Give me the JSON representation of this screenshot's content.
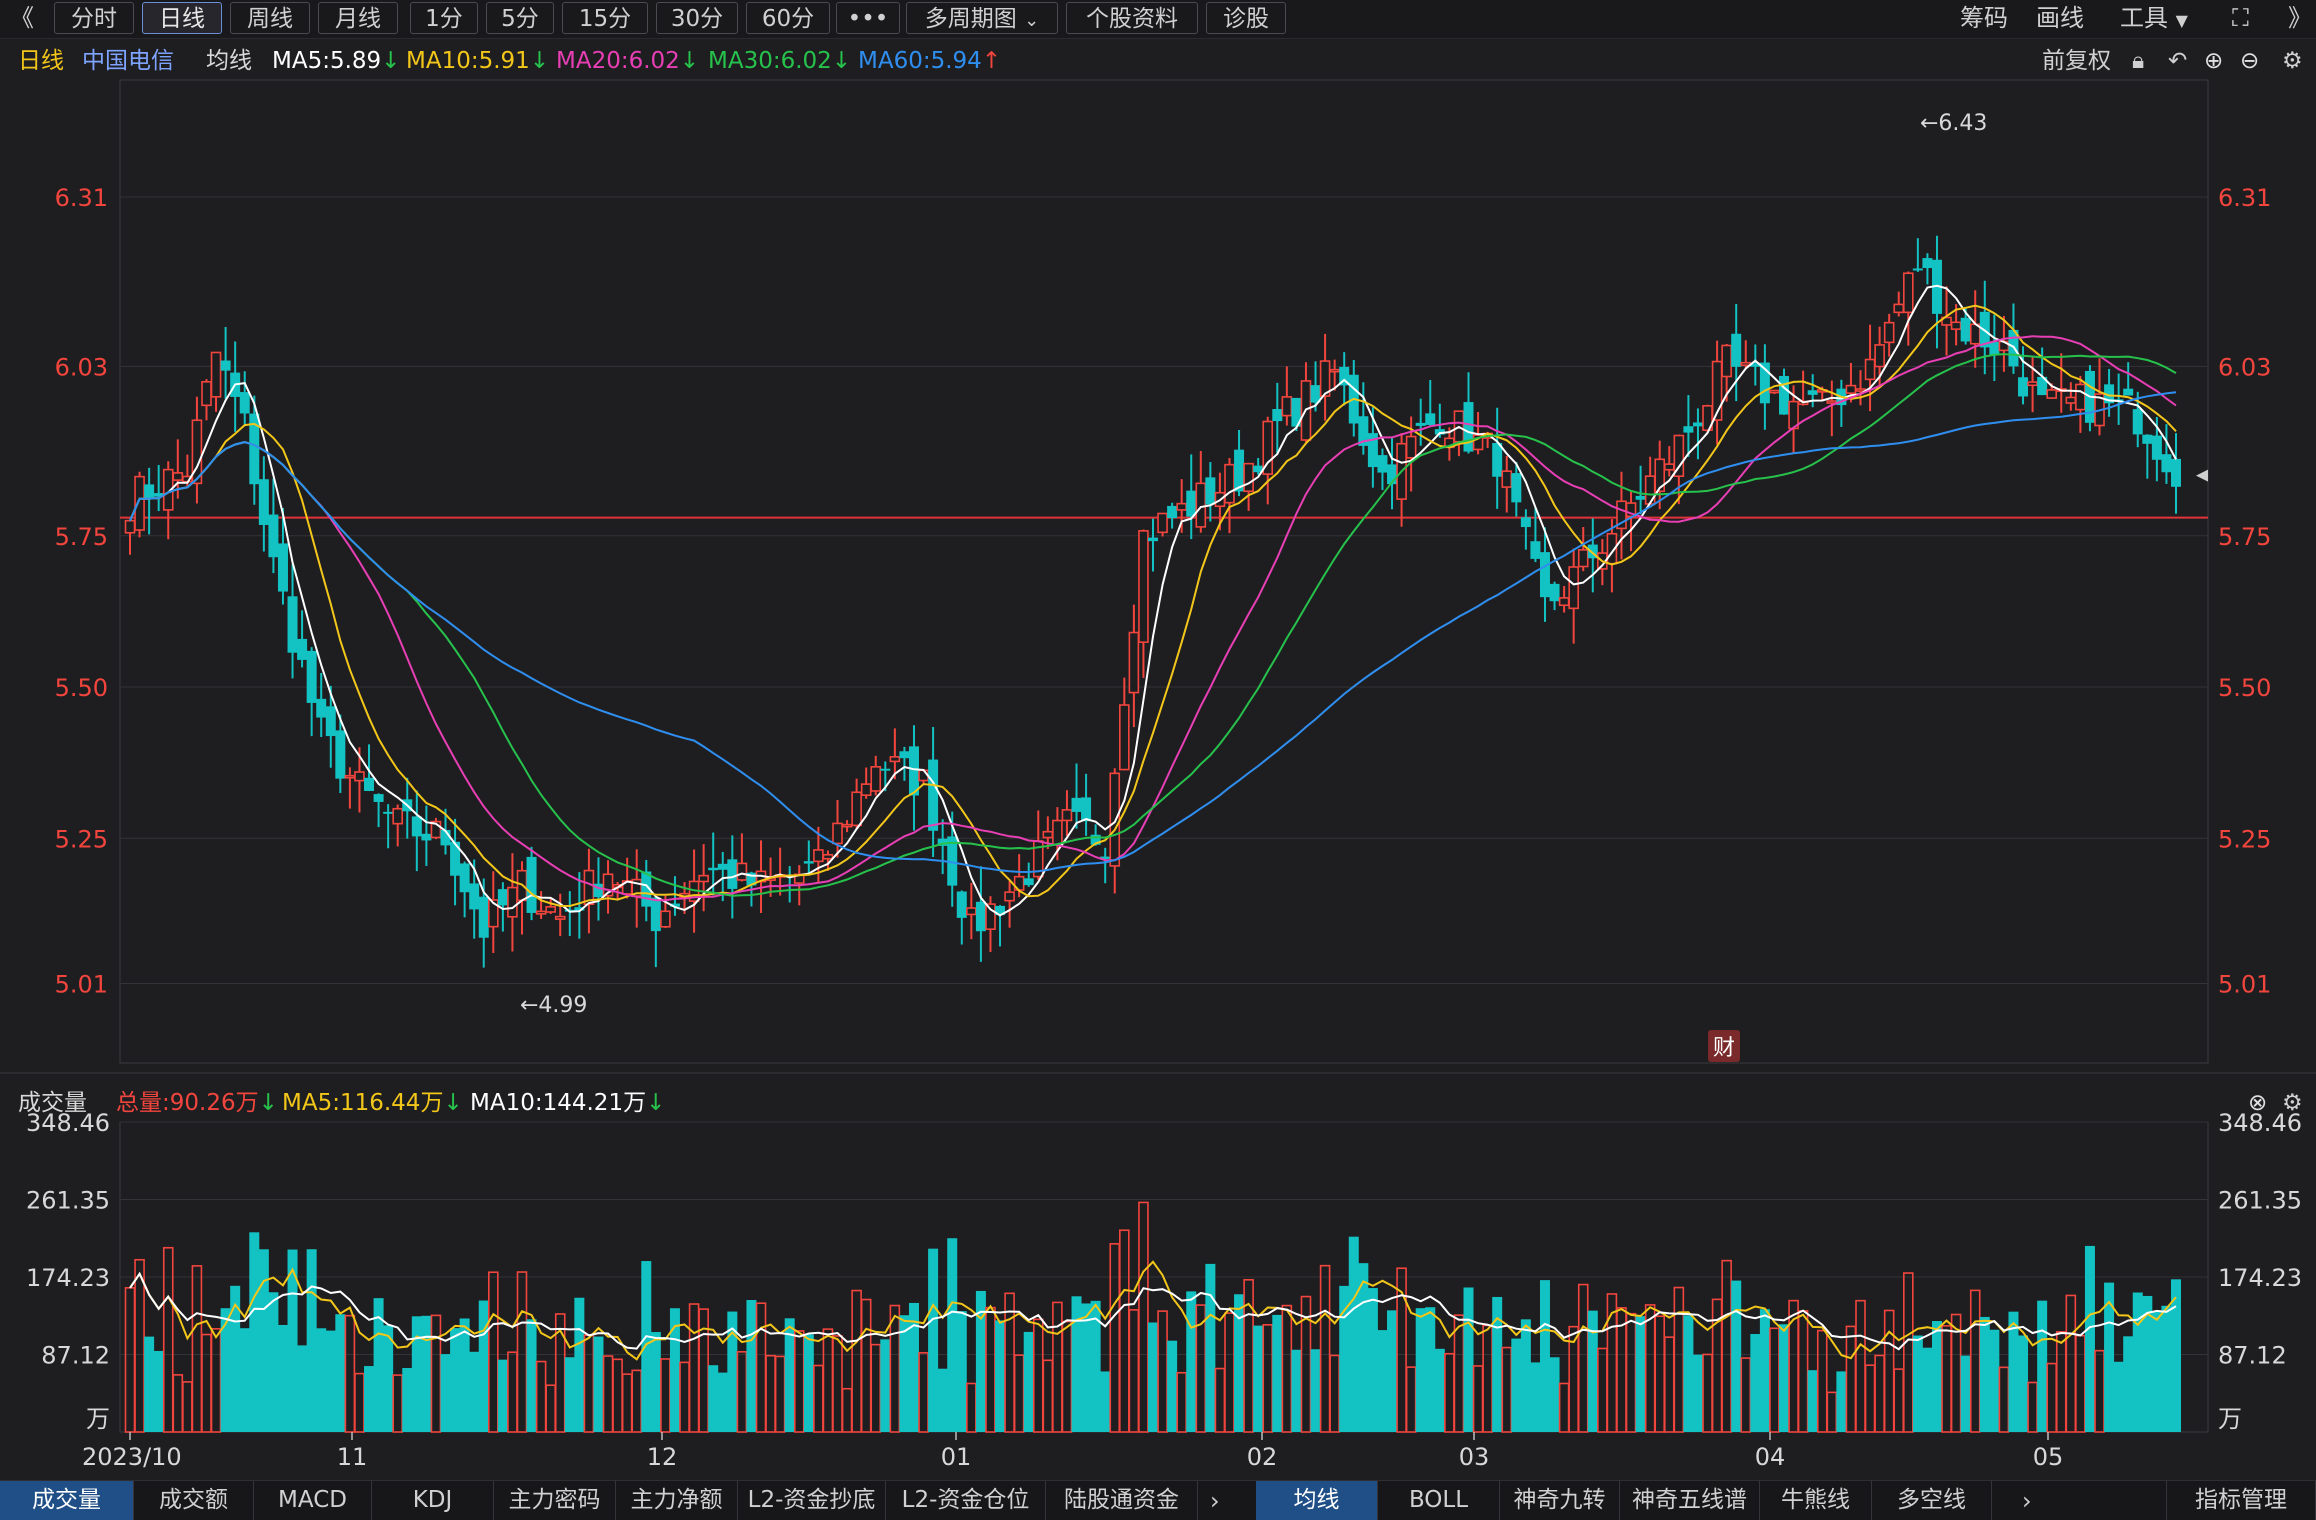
{
  "toolbar": {
    "back_icon": "double-chevron-left",
    "periods": [
      "分时",
      "日线",
      "周线",
      "月线",
      "1分",
      "5分",
      "15分",
      "30分",
      "60分"
    ],
    "active_period": "日线",
    "more_label": "•••",
    "multi_period_label": "多周期图",
    "stock_info_label": "个股资料",
    "diagnose_label": "诊股",
    "chips_label": "筹码",
    "draw_label": "画线",
    "tools_label": "工具",
    "fullscreen_icon": "expand-icon",
    "forward_icon": "double-chevron-right"
  },
  "legend": {
    "period": "日线",
    "stock_name": "中国电信",
    "ma_label": "均线",
    "ma5": "MA5:5.89",
    "ma10": "MA10:5.91",
    "ma20": "MA20:6.02",
    "ma30": "MA30:6.02",
    "ma60": "MA60:5.94",
    "adjust": "前复权"
  },
  "price_axis": {
    "ticks": [
      "6.31",
      "6.03",
      "5.75",
      "5.50",
      "5.25",
      "5.01"
    ],
    "high_marker": "←6.43",
    "low_marker": "←4.99",
    "finance_badge": "财"
  },
  "volume_legend": {
    "title": "成交量",
    "total": "总量:90.26万",
    "ma5": "MA5:116.44万",
    "ma10": "MA10:144.21万"
  },
  "volume_axis": {
    "ticks": [
      "348.46",
      "261.35",
      "174.23",
      "87.12"
    ],
    "unit": "万"
  },
  "date_axis": [
    "2023/10",
    "11",
    "12",
    "01",
    "02",
    "03",
    "04",
    "05"
  ],
  "bottom_tabs_left": [
    "成交量",
    "成交额",
    "MACD",
    "KDJ",
    "主力密码",
    "主力净额",
    "L2-资金抄底",
    "L2-资金仓位",
    "陆股通资金"
  ],
  "bottom_tabs_right": [
    "均线",
    "BOLL",
    "神奇九转",
    "神奇五线谱",
    "牛熊线",
    "多空线"
  ],
  "bottom_manage": "指标管理",
  "colors": {
    "up": "#f2453d",
    "down": "#13c2c2",
    "ma5": "#ffffff",
    "ma10": "#f3c61a",
    "ma20": "#e83fb5",
    "ma30": "#27c24c",
    "ma60": "#2f8ff0"
  },
  "chart_data": {
    "type": "candlestick",
    "price_range": [
      4.94,
      6.4
    ],
    "price_anchors": [
      {
        "i": 0,
        "p": 5.81
      },
      {
        "i": 6,
        "p": 5.86
      },
      {
        "i": 9,
        "p": 6.05
      },
      {
        "i": 12,
        "p": 5.93
      },
      {
        "i": 15,
        "p": 5.7
      },
      {
        "i": 20,
        "p": 5.42
      },
      {
        "i": 24,
        "p": 5.33
      },
      {
        "i": 28,
        "p": 5.27
      },
      {
        "i": 33,
        "p": 5.25
      },
      {
        "i": 37,
        "p": 5.1
      },
      {
        "i": 41,
        "p": 5.17
      },
      {
        "i": 45,
        "p": 5.12
      },
      {
        "i": 50,
        "p": 5.2
      },
      {
        "i": 55,
        "p": 5.12
      },
      {
        "i": 60,
        "p": 5.2
      },
      {
        "i": 66,
        "p": 5.17
      },
      {
        "i": 72,
        "p": 5.2
      },
      {
        "i": 78,
        "p": 5.38
      },
      {
        "i": 83,
        "p": 5.34
      },
      {
        "i": 88,
        "p": 5.1
      },
      {
        "i": 93,
        "p": 5.18
      },
      {
        "i": 98,
        "p": 5.27
      },
      {
        "i": 102,
        "p": 5.25
      },
      {
        "i": 106,
        "p": 5.75
      },
      {
        "i": 111,
        "p": 5.8
      },
      {
        "i": 116,
        "p": 5.85
      },
      {
        "i": 121,
        "p": 5.95
      },
      {
        "i": 126,
        "p": 6.02
      },
      {
        "i": 131,
        "p": 5.85
      },
      {
        "i": 137,
        "p": 5.95
      },
      {
        "i": 143,
        "p": 5.88
      },
      {
        "i": 148,
        "p": 5.63
      },
      {
        "i": 152,
        "p": 5.7
      },
      {
        "i": 157,
        "p": 5.8
      },
      {
        "i": 162,
        "p": 5.9
      },
      {
        "i": 167,
        "p": 6.03
      },
      {
        "i": 172,
        "p": 5.98
      },
      {
        "i": 177,
        "p": 5.96
      },
      {
        "i": 182,
        "p": 6.03
      },
      {
        "i": 187,
        "p": 6.2
      },
      {
        "i": 191,
        "p": 6.1
      },
      {
        "i": 196,
        "p": 6.06
      },
      {
        "i": 200,
        "p": 5.96
      },
      {
        "i": 205,
        "p": 5.97
      },
      {
        "i": 210,
        "p": 5.95
      },
      {
        "i": 214,
        "p": 5.86
      }
    ],
    "candle_count": 215,
    "ma_labels": [
      "MA5",
      "MA10",
      "MA20",
      "MA30",
      "MA60"
    ],
    "support_line": 5.78,
    "volume_range": [
      0,
      348.46
    ],
    "volume_unit": "万"
  }
}
